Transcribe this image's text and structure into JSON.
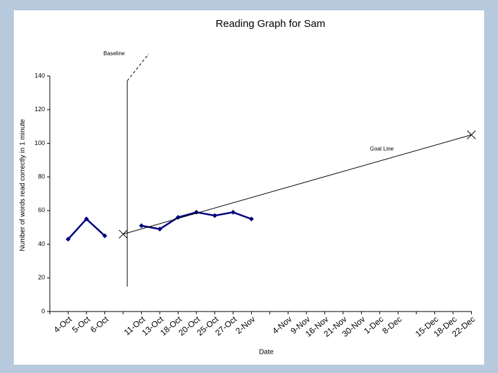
{
  "chart_data": {
    "type": "line",
    "title": "Reading Graph for Sam",
    "x_label": "Date",
    "y_label": "Number of words read correctly in 1 minute",
    "categories": [
      null,
      "4-Oct",
      "5-Oct",
      "6-Oct",
      null,
      "11-Oct",
      "13-Oct",
      "18-Oct",
      "20-Oct",
      "25-Oct",
      "27-Oct",
      "2-Nov",
      null,
      "4-Nov",
      "9-Nov",
      "16-Nov",
      "21-Nov",
      "30-Nov",
      "1-Dec",
      "8-Dec",
      null,
      "15-Dec",
      "18-Dec",
      "22-Dec"
    ],
    "series": [
      {
        "color": "#000080",
        "values": [
          null,
          43,
          55,
          45,
          null,
          51,
          49,
          56,
          59,
          57,
          59,
          55,
          null,
          null,
          null,
          null,
          null,
          null,
          null,
          null,
          null,
          null,
          null,
          null
        ]
      }
    ],
    "goal_line": {
      "label": "Goal Line",
      "color": "#000000",
      "points": [
        {
          "x": 4,
          "y": 46
        },
        {
          "x": 23,
          "y": 105
        }
      ]
    },
    "baseline_label": "Baseline",
    "ylim": [
      0,
      140
    ],
    "yticks": [
      0,
      20,
      40,
      60,
      80,
      100,
      120,
      140
    ],
    "grid": false
  }
}
